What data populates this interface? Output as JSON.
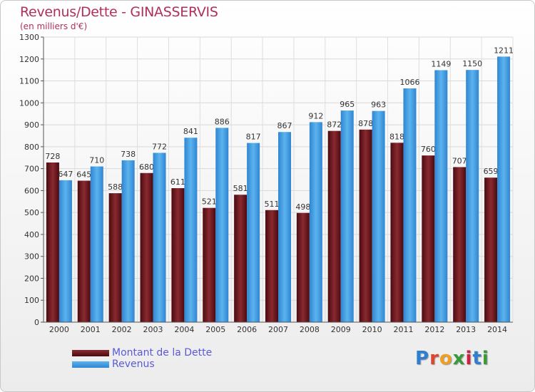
{
  "title": "Revenus/Dette - GINASSERVIS",
  "subtitle": "(en milliers d'€)",
  "brand": {
    "text": "Proxiti"
  },
  "legend": [
    {
      "label": "Montant de la Dette",
      "color": "#6b1a1f"
    },
    {
      "label": "Revenus",
      "color": "#3c9ee6"
    }
  ],
  "colors": {
    "dette_dark": "#4a0b10",
    "dette_light": "#8a2a30",
    "revenus_dark": "#2f86d2",
    "revenus_light": "#5cb3ee",
    "title": "#b0305a",
    "legend_text": "#5a5ad8"
  },
  "chart_data": {
    "type": "bar",
    "title": "Revenus/Dette - GINASSERVIS",
    "ylabel": "(en milliers d'€)",
    "categories": [
      "2000",
      "2001",
      "2002",
      "2003",
      "2004",
      "2005",
      "2006",
      "2007",
      "2008",
      "2009",
      "2010",
      "2011",
      "2012",
      "2013",
      "2014"
    ],
    "series": [
      {
        "name": "Montant de la Dette",
        "values": [
          728,
          645,
          588,
          680,
          611,
          521,
          581,
          511,
          498,
          872,
          878,
          818,
          760,
          707,
          659
        ]
      },
      {
        "name": "Revenus",
        "values": [
          647,
          710,
          738,
          772,
          841,
          886,
          817,
          867,
          912,
          965,
          963,
          1066,
          1149,
          1150,
          1211
        ]
      }
    ],
    "ylim": [
      0,
      1300
    ],
    "yticks": [
      0,
      100,
      200,
      300,
      400,
      500,
      600,
      700,
      800,
      900,
      1000,
      1100,
      1200,
      1300
    ],
    "grid": true,
    "legend_position": "bottom-left"
  }
}
